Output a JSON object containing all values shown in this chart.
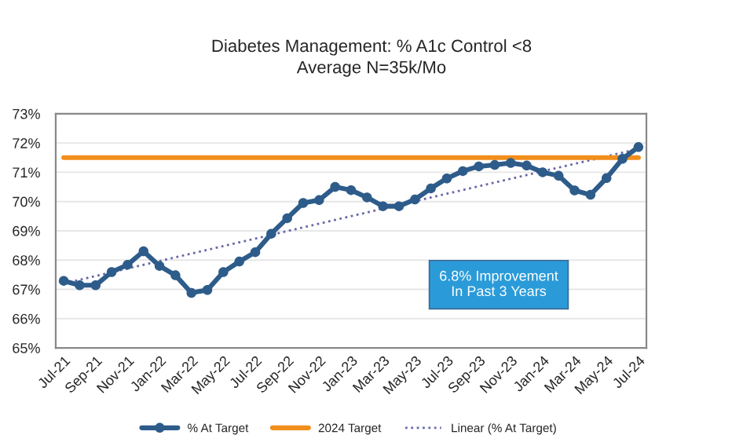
{
  "chart_data": {
    "type": "line",
    "title": "Diabetes Management: % A1c Control <8\nAverage N=35k/Mo",
    "categories": [
      "Jul-21",
      null,
      "Sep-21",
      null,
      "Nov-21",
      null,
      "Jan-22",
      null,
      "Mar-22",
      null,
      "May-22",
      null,
      "Jul-22",
      null,
      "Sep-22",
      null,
      "Nov-22",
      null,
      "Jan-23",
      null,
      "Mar-23",
      null,
      "May-23",
      null,
      "Jul-23",
      null,
      "Sep-23",
      null,
      "Nov-23",
      null,
      "Jan-24",
      null,
      "Mar-24",
      null,
      "May-24",
      null,
      "Jul-24"
    ],
    "series": [
      {
        "name": "% At Target",
        "color": "#2e5c8a",
        "marker": "circle",
        "line_style": "solid",
        "values": [
          67.29,
          67.14,
          67.14,
          67.59,
          67.84,
          68.3,
          67.8,
          67.48,
          66.88,
          66.98,
          67.59,
          67.95,
          68.27,
          68.9,
          69.43,
          69.95,
          70.05,
          70.5,
          70.39,
          70.14,
          69.84,
          69.84,
          70.07,
          70.45,
          70.79,
          71.04,
          71.2,
          71.25,
          71.32,
          71.23,
          71.0,
          70.88,
          70.38,
          70.23,
          70.8,
          71.46,
          71.86
        ]
      },
      {
        "name": "2024 Target",
        "color": "#f28e1c",
        "marker": "none",
        "line_style": "solid",
        "x": [
          "Jul-21",
          "Jul-24"
        ],
        "values": [
          71.5,
          71.5
        ]
      },
      {
        "name": "Linear (% At Target)",
        "color": "#6868a8",
        "marker": "none",
        "line_style": "dotted",
        "x": [
          "Jul-21",
          "Jul-24"
        ],
        "values": [
          67.2,
          71.8
        ]
      }
    ],
    "ylim": [
      65,
      73
    ],
    "yticks": [
      {
        "value": 65,
        "label": "65%"
      },
      {
        "value": 66,
        "label": "66%"
      },
      {
        "value": 67,
        "label": "67%"
      },
      {
        "value": 68,
        "label": "68%"
      },
      {
        "value": 69,
        "label": "69%"
      },
      {
        "value": 70,
        "label": "70%"
      },
      {
        "value": 71,
        "label": "71%"
      },
      {
        "value": 72,
        "label": "72%"
      },
      {
        "value": 73,
        "label": "73%"
      }
    ],
    "grid": "y",
    "legend": "bottom",
    "annotations": [
      "6.8% Improvement\nIn Past 3 Years"
    ]
  }
}
